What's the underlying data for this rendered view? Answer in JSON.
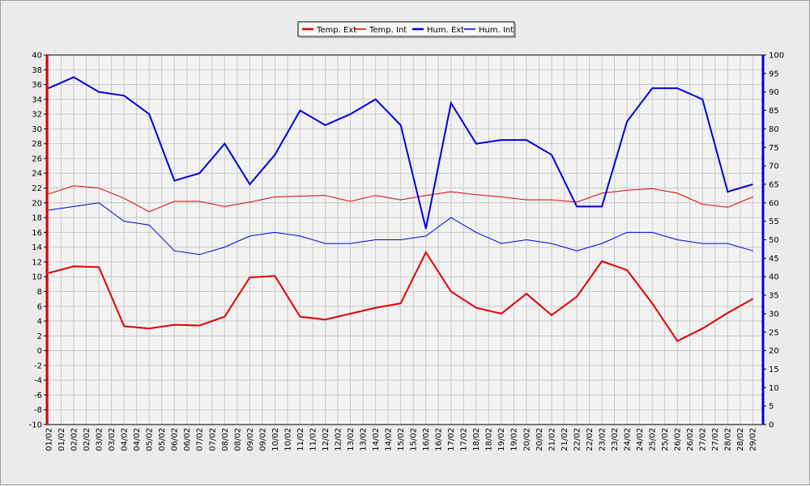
{
  "chart_data": {
    "type": "line",
    "categories": [
      "01/02",
      "02/02",
      "03/02",
      "04/02",
      "05/02",
      "06/02",
      "07/02",
      "08/02",
      "09/02",
      "10/02",
      "11/02",
      "12/02",
      "13/02",
      "14/02",
      "15/02",
      "16/02",
      "17/02",
      "18/02",
      "19/02",
      "20/02",
      "21/02",
      "22/02",
      "23/02",
      "24/02",
      "25/02",
      "26/02",
      "27/02",
      "28/02",
      "29/02"
    ],
    "x": [
      "01/02",
      "01/02",
      "02/02",
      "02/02",
      "03/02",
      "03/02",
      "04/02",
      "04/02",
      "05/02",
      "05/02",
      "06/02",
      "06/02",
      "07/02",
      "07/02",
      "08/02",
      "08/02",
      "09/02",
      "09/02",
      "10/02",
      "10/02",
      "11/02",
      "11/02",
      "12/02",
      "12/02",
      "13/02",
      "13/02",
      "14/02",
      "14/02",
      "15/02",
      "15/02",
      "16/02",
      "16/02",
      "17/02",
      "17/02",
      "18/02",
      "18/02",
      "19/02",
      "19/02",
      "20/02",
      "20/02",
      "21/02",
      "21/02",
      "22/02",
      "22/02",
      "23/02",
      "23/02",
      "24/02",
      "24/02",
      "25/02",
      "25/02",
      "26/02",
      "26/02",
      "27/02",
      "27/02",
      "28/02",
      "28/02",
      "29/02",
      "29/02"
    ],
    "y_left": {
      "min": -10,
      "max": 40,
      "step": 2
    },
    "y_right": {
      "min": 0,
      "max": 100,
      "step": 5
    },
    "grid": true,
    "legend_position": "top-center",
    "series": [
      {
        "name": "Temp. Ext",
        "axis": "left",
        "color": "#e00000",
        "width": 2,
        "values": [
          10.5,
          11.4,
          11.3,
          3.3,
          3.0,
          3.5,
          3.4,
          4.6,
          9.9,
          10.1,
          4.6,
          4.2,
          5.0,
          5.8,
          6.4,
          13.3,
          8.0,
          5.8,
          5.0,
          7.7,
          4.8,
          7.3,
          12.1,
          10.9,
          6.4,
          1.3,
          3.0,
          5.1,
          7.0
        ]
      },
      {
        "name": "Temp. Int",
        "axis": "left",
        "color": "#e00000",
        "width": 1,
        "values": [
          21.2,
          22.3,
          22.0,
          20.6,
          18.8,
          20.2,
          20.2,
          19.5,
          20.1,
          20.8,
          20.9,
          21.0,
          20.2,
          21.0,
          20.4,
          21.0,
          21.5,
          21.1,
          20.8,
          20.4,
          20.4,
          20.1,
          21.3,
          21.7,
          21.9,
          21.3,
          19.8,
          19.4,
          20.8
        ]
      },
      {
        "name": "Hum. Ext",
        "axis": "right",
        "color": "#0000dd",
        "width": 2,
        "values": [
          91,
          94,
          90,
          89,
          84,
          66,
          68,
          76,
          65,
          73,
          85,
          81,
          84,
          88,
          81,
          53,
          87,
          76,
          77,
          77,
          73,
          59,
          59,
          82,
          91,
          91,
          88,
          63,
          65
        ]
      },
      {
        "name": "Hum. Int",
        "axis": "right",
        "color": "#0000dd",
        "width": 1,
        "values": [
          58,
          59,
          60,
          55,
          54,
          47,
          46,
          48,
          51,
          52,
          51,
          49,
          49,
          50,
          50,
          51,
          56,
          52,
          49,
          50,
          49,
          47,
          49,
          52,
          52,
          50,
          49,
          49,
          47
        ]
      }
    ]
  }
}
